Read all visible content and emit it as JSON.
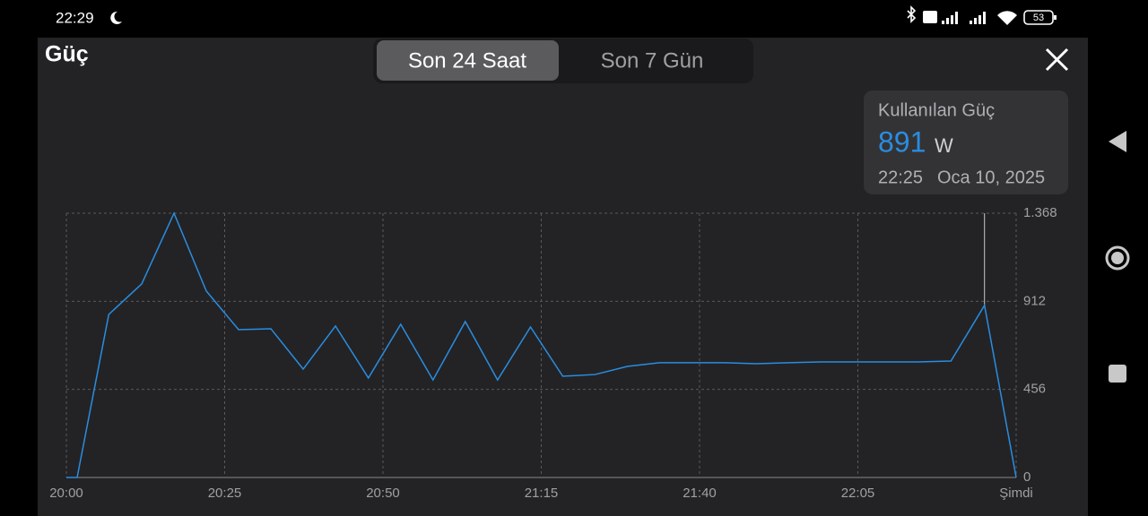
{
  "status_bar": {
    "time": "22:29",
    "battery": "53"
  },
  "header": {
    "title": "Güç",
    "tabs": [
      "Son 24 Saat",
      "Son 7 Gün"
    ],
    "active_tab": 0
  },
  "tooltip": {
    "label": "Kullanılan Güç",
    "value": "891",
    "unit": "W",
    "time": "22:25",
    "date": "Oca 10, 2025"
  },
  "chart_data": {
    "type": "line",
    "color": "#2a8de0",
    "grid": true,
    "selected_index": 29,
    "x": [
      0,
      1.7,
      6.7,
      11.9,
      17,
      22.1,
      27.2,
      32.3,
      37.4,
      42.5,
      47.7,
      52.8,
      57.9,
      63,
      68.1,
      73.3,
      78.4,
      83.5,
      88.6,
      93.7,
      98.8,
      103.9,
      109,
      114.1,
      119.2,
      124.3,
      129.4,
      134.5,
      139.7,
      145,
      150
    ],
    "values": [
      0,
      0,
      844,
      1002,
      1368,
      965,
      765,
      770,
      561,
      784,
      515,
      793,
      505,
      807,
      505,
      779,
      524,
      533,
      575,
      594,
      594,
      594,
      589,
      594,
      598,
      598,
      598,
      598,
      603,
      891,
      0
    ],
    "xlim": [
      0,
      150
    ],
    "xticks": [
      {
        "value": 0,
        "label": "20:00"
      },
      {
        "value": 25,
        "label": "20:25"
      },
      {
        "value": 50,
        "label": "20:50"
      },
      {
        "value": 75,
        "label": "21:15"
      },
      {
        "value": 100,
        "label": "21:40"
      },
      {
        "value": 125,
        "label": "22:05"
      },
      {
        "value": 150,
        "label": "Şimdi"
      }
    ],
    "ylim": [
      0,
      1368
    ],
    "yticks": [
      0,
      456,
      912,
      {
        "value": 1368,
        "label": "1.368"
      }
    ]
  }
}
